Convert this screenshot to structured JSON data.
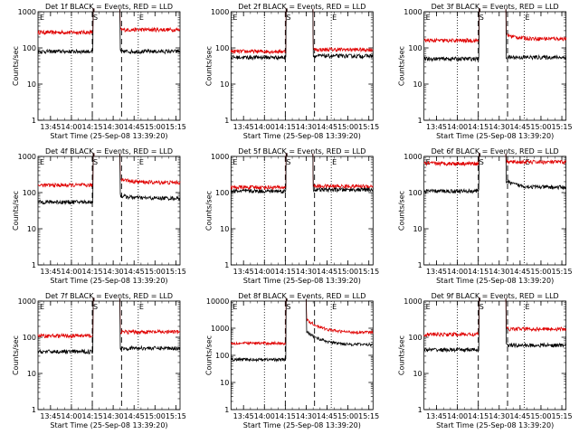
{
  "shared": {
    "x_ticks": [
      "13:45",
      "14:00",
      "14:15",
      "14:30",
      "14:45",
      "15:00",
      "15:15"
    ],
    "xlabel": "Start Time (25-Sep-08 13:39:20)",
    "ylabel": "Counts/sec",
    "marker_E": "E",
    "marker_S": "S"
  },
  "chart_data": [
    {
      "type": "line",
      "title": "Det 1f BLACK = Events, RED = LLD",
      "xlabel": "Start Time (25-Sep-08 13:39:20)",
      "ylabel": "Counts/sec",
      "x_ticks": [
        "13:45",
        "14:00",
        "14:15",
        "14:30",
        "14:45",
        "15:00",
        "15:15"
      ],
      "y_ticks": [
        "1",
        "10",
        "100",
        "1000"
      ],
      "ylim": [
        1,
        1000
      ],
      "yscale": "log",
      "grid": false,
      "dashed_lines": [
        14.25,
        14.6
      ],
      "dotted_lines": [
        14.0,
        14.8
      ],
      "colors": {
        "events": "#000000",
        "lld": "#e00000"
      },
      "events": {
        "pre": 80,
        "post": 80,
        "ramp": 1.0
      },
      "lld": {
        "pre": 270,
        "post": 320,
        "ramp": 1.0
      },
      "time_range": [
        13.6,
        15.3
      ],
      "gap": [
        14.27,
        14.58
      ]
    },
    {
      "type": "line",
      "title": "Det 2f BLACK = Events, RED = LLD",
      "xlabel": "Start Time (25-Sep-08 13:39:20)",
      "ylabel": "Counts/sec",
      "x_ticks": [
        "13:45",
        "14:00",
        "14:15",
        "14:30",
        "14:45",
        "15:00",
        "15:15"
      ],
      "y_ticks": [
        "1",
        "10",
        "100",
        "1000"
      ],
      "ylim": [
        1,
        1000
      ],
      "yscale": "log",
      "grid": false,
      "dashed_lines": [
        14.25,
        14.6
      ],
      "dotted_lines": [
        14.0,
        14.8
      ],
      "colors": {
        "events": "#000000",
        "lld": "#e00000"
      },
      "events": {
        "pre": 55,
        "post": 60,
        "ramp": 1.0
      },
      "lld": {
        "pre": 80,
        "post": 90,
        "ramp": 1.0
      },
      "time_range": [
        13.6,
        15.3
      ],
      "gap": [
        14.27,
        14.58
      ]
    },
    {
      "type": "line",
      "title": "Det 3f BLACK = Events, RED = LLD",
      "xlabel": "Start Time (25-Sep-08 13:39:20)",
      "ylabel": "Counts/sec",
      "x_ticks": [
        "13:45",
        "14:00",
        "14:15",
        "14:30",
        "14:45",
        "15:00",
        "15:15"
      ],
      "y_ticks": [
        "1",
        "10",
        "100",
        "1000"
      ],
      "ylim": [
        1,
        1000
      ],
      "yscale": "log",
      "grid": false,
      "dashed_lines": [
        14.25,
        14.6
      ],
      "dotted_lines": [
        14.0,
        14.8
      ],
      "colors": {
        "events": "#000000",
        "lld": "#e00000"
      },
      "events": {
        "pre": 50,
        "post": 55,
        "ramp": 1.0
      },
      "lld": {
        "pre": 160,
        "post": 180,
        "ramp": 1.3
      },
      "time_range": [
        13.6,
        15.3
      ],
      "gap": [
        14.27,
        14.58
      ]
    },
    {
      "type": "line",
      "title": "Det 4f BLACK = Events, RED = LLD",
      "xlabel": "Start Time (25-Sep-08 13:39:20)",
      "ylabel": "Counts/sec",
      "x_ticks": [
        "13:45",
        "14:00",
        "14:15",
        "14:30",
        "14:45",
        "15:00",
        "15:15"
      ],
      "y_ticks": [
        "1",
        "10",
        "100",
        "1000"
      ],
      "ylim": [
        1,
        1000
      ],
      "yscale": "log",
      "grid": false,
      "dashed_lines": [
        14.25,
        14.6
      ],
      "dotted_lines": [
        14.0,
        14.8
      ],
      "colors": {
        "events": "#000000",
        "lld": "#e00000"
      },
      "events": {
        "pre": 55,
        "post": 70,
        "ramp": 1.2
      },
      "lld": {
        "pre": 160,
        "post": 190,
        "ramp": 1.3
      },
      "time_range": [
        13.6,
        15.3
      ],
      "gap": [
        14.27,
        14.58
      ]
    },
    {
      "type": "line",
      "title": "Det 5f BLACK = Events, RED = LLD",
      "xlabel": "Start Time (25-Sep-08 13:39:20)",
      "ylabel": "Counts/sec",
      "x_ticks": [
        "13:45",
        "14:00",
        "14:15",
        "14:30",
        "14:45",
        "15:00",
        "15:15"
      ],
      "y_ticks": [
        "1",
        "10",
        "100",
        "1000"
      ],
      "ylim": [
        1,
        1000
      ],
      "yscale": "log",
      "grid": false,
      "dashed_lines": [
        14.25,
        14.6
      ],
      "dotted_lines": [
        14.0,
        14.8
      ],
      "colors": {
        "events": "#000000",
        "lld": "#e00000"
      },
      "events": {
        "pre": 110,
        "post": 120,
        "ramp": 1.0
      },
      "lld": {
        "pre": 140,
        "post": 150,
        "ramp": 1.0
      },
      "time_range": [
        13.6,
        15.3
      ],
      "gap": [
        14.27,
        14.58
      ]
    },
    {
      "type": "line",
      "title": "Det 6f BLACK = Events, RED = LLD",
      "xlabel": "Start Time (25-Sep-08 13:39:20)",
      "ylabel": "Counts/sec",
      "x_ticks": [
        "13:45",
        "14:00",
        "14:15",
        "14:30",
        "14:45",
        "15:00",
        "15:15"
      ],
      "y_ticks": [
        "1",
        "10",
        "100",
        "1000"
      ],
      "ylim": [
        1,
        1000
      ],
      "yscale": "log",
      "grid": false,
      "dashed_lines": [
        14.25,
        14.6
      ],
      "dotted_lines": [
        14.0,
        14.8
      ],
      "colors": {
        "events": "#000000",
        "lld": "#e00000"
      },
      "events": {
        "pre": 110,
        "post": 140,
        "ramp": 1.5
      },
      "lld": {
        "pre": 640,
        "post": 700,
        "ramp": 1.0
      },
      "time_range": [
        13.6,
        15.3
      ],
      "gap": [
        14.27,
        14.58
      ]
    },
    {
      "type": "line",
      "title": "Det 7f BLACK = Events, RED = LLD",
      "xlabel": "Start Time (25-Sep-08 13:39:20)",
      "ylabel": "Counts/sec",
      "x_ticks": [
        "13:45",
        "14:00",
        "14:15",
        "14:30",
        "14:45",
        "15:00",
        "15:15"
      ],
      "y_ticks": [
        "1",
        "10",
        "100",
        "1000"
      ],
      "ylim": [
        1,
        1000
      ],
      "yscale": "log",
      "grid": false,
      "dashed_lines": [
        14.25,
        14.6
      ],
      "dotted_lines": [
        14.0,
        14.8
      ],
      "colors": {
        "events": "#000000",
        "lld": "#e00000"
      },
      "events": {
        "pre": 40,
        "post": 50,
        "ramp": 1.0
      },
      "lld": {
        "pre": 110,
        "post": 140,
        "ramp": 1.0
      },
      "time_range": [
        13.6,
        15.3
      ],
      "gap": [
        14.27,
        14.58
      ]
    },
    {
      "type": "line",
      "title": "Det 8f BLACK = Events, RED = LLD",
      "xlabel": "Start Time (25-Sep-08 13:39:20)",
      "ylabel": "Counts/sec",
      "x_ticks": [
        "13:45",
        "14:00",
        "14:15",
        "14:30",
        "14:45",
        "15:00",
        "15:15"
      ],
      "y_ticks": [
        "1",
        "10",
        "100",
        "1000",
        "10000"
      ],
      "ylim": [
        1,
        10000
      ],
      "yscale": "log",
      "grid": false,
      "dashed_lines": [
        14.25,
        14.6
      ],
      "dotted_lines": [
        14.0,
        14.8
      ],
      "colors": {
        "events": "#000000",
        "lld": "#e00000"
      },
      "events": {
        "pre": 70,
        "post": 250,
        "ramp": 3.0
      },
      "lld": {
        "pre": 280,
        "post": 700,
        "ramp": 3.0
      },
      "time_range": [
        13.6,
        15.3
      ],
      "gap": [
        14.27,
        14.5
      ]
    },
    {
      "type": "line",
      "title": "Det 9f BLACK = Events, RED = LLD",
      "xlabel": "Start Time (25-Sep-08 13:39:20)",
      "ylabel": "Counts/sec",
      "x_ticks": [
        "13:45",
        "14:00",
        "14:15",
        "14:30",
        "14:45",
        "15:00",
        "15:15"
      ],
      "y_ticks": [
        "1",
        "10",
        "100",
        "1000"
      ],
      "ylim": [
        1,
        1000
      ],
      "yscale": "log",
      "grid": false,
      "dashed_lines": [
        14.25,
        14.6
      ],
      "dotted_lines": [
        14.0,
        14.8
      ],
      "colors": {
        "events": "#000000",
        "lld": "#e00000"
      },
      "events": {
        "pre": 45,
        "post": 60,
        "ramp": 1.0
      },
      "lld": {
        "pre": 120,
        "post": 170,
        "ramp": 1.0
      },
      "time_range": [
        13.6,
        15.3
      ],
      "gap": [
        14.27,
        14.58
      ]
    }
  ]
}
